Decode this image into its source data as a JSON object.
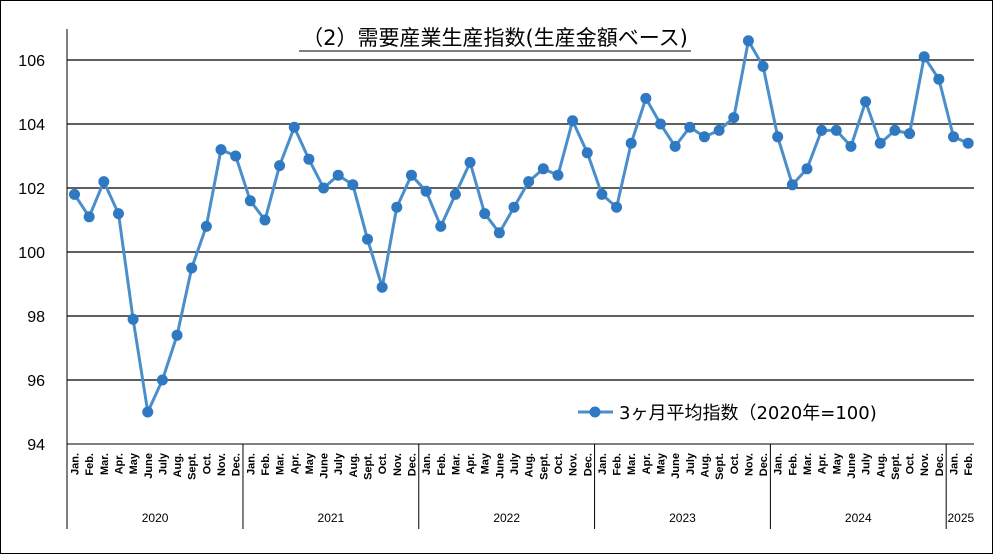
{
  "chart_data": {
    "type": "line",
    "title": "（2）需要産業生産指数(生産金額ベース)",
    "ylim": [
      94,
      106.6
    ],
    "yticks": [
      94,
      96,
      98,
      100,
      102,
      104,
      106
    ],
    "grid": true,
    "legend_position": "bottom-right",
    "colors": {
      "line": "#4a8fcb",
      "marker": "#2f78c2",
      "grid": "#000000"
    },
    "months": [
      "Jan.",
      "Feb.",
      "Mar.",
      "Apr.",
      "May",
      "June",
      "July",
      "Aug.",
      "Sept.",
      "Oct.",
      "Nov.",
      "Dec.",
      "Jan.",
      "Feb.",
      "Mar.",
      "Apr.",
      "May",
      "June",
      "July",
      "Aug.",
      "Sept.",
      "Oct.",
      "Nov.",
      "Dec.",
      "Jan.",
      "Feb.",
      "Mar.",
      "Apr.",
      "May",
      "June",
      "July",
      "Aug.",
      "Sept.",
      "Oct.",
      "Nov.",
      "Dec.",
      "Jan.",
      "Feb.",
      "Mar.",
      "Apr.",
      "May",
      "June",
      "July",
      "Aug.",
      "Sept.",
      "Oct.",
      "Nov.",
      "Dec.",
      "Jan.",
      "Feb.",
      "Mar.",
      "Apr.",
      "May",
      "June",
      "July",
      "Aug.",
      "Sept.",
      "Oct.",
      "Nov.",
      "Dec.",
      "Jan.",
      "Feb."
    ],
    "years": [
      {
        "label": "2020",
        "start": 0,
        "count": 12
      },
      {
        "label": "2021",
        "start": 12,
        "count": 12
      },
      {
        "label": "2022",
        "start": 24,
        "count": 12
      },
      {
        "label": "2023",
        "start": 36,
        "count": 12
      },
      {
        "label": "2024",
        "start": 48,
        "count": 12
      },
      {
        "label": "2025",
        "start": 60,
        "count": 2
      }
    ],
    "series": [
      {
        "name": "3ヶ月平均指数（2020年=100)",
        "values": [
          101.8,
          101.1,
          102.2,
          101.2,
          97.9,
          95.0,
          96.0,
          97.4,
          99.5,
          100.8,
          103.2,
          103.0,
          101.6,
          101.0,
          102.7,
          103.9,
          102.9,
          102.0,
          102.4,
          102.1,
          100.4,
          98.9,
          101.4,
          102.4,
          101.9,
          100.8,
          101.8,
          102.8,
          101.2,
          100.6,
          101.4,
          102.2,
          102.6,
          102.4,
          104.1,
          103.1,
          101.8,
          101.4,
          103.4,
          104.8,
          104.0,
          103.3,
          103.9,
          103.6,
          103.8,
          104.2,
          106.6,
          105.8,
          103.6,
          102.1,
          102.6,
          103.8,
          103.8,
          103.3,
          104.7,
          103.4,
          103.8,
          103.7,
          106.1,
          105.4,
          103.6,
          103.4
        ]
      }
    ]
  }
}
